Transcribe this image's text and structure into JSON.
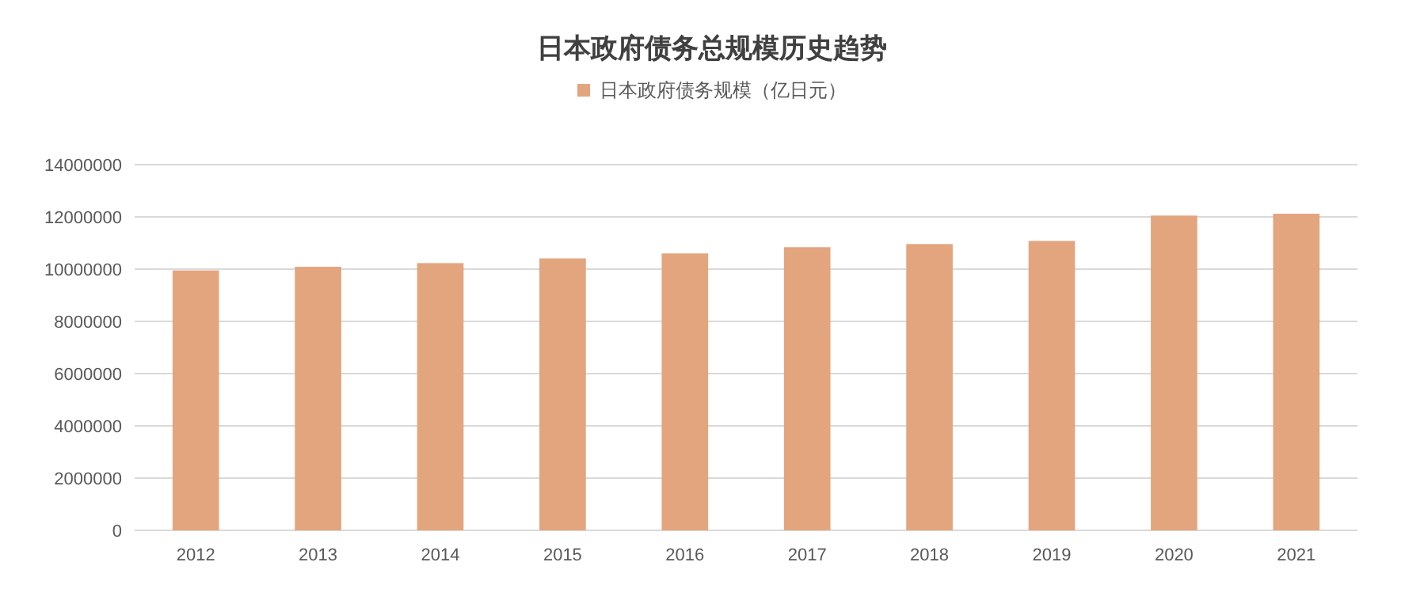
{
  "chart_data": {
    "type": "bar",
    "title": "日本政府债务总规模历史趋势",
    "categories": [
      "2012",
      "2013",
      "2014",
      "2015",
      "2016",
      "2017",
      "2018",
      "2019",
      "2020",
      "2021"
    ],
    "series": [
      {
        "name": "日本政府债务规模（亿日元）",
        "color": "#e3a57e",
        "values": [
          9950000,
          10090000,
          10230000,
          10410000,
          10600000,
          10840000,
          10960000,
          11080000,
          12050000,
          12120000
        ]
      }
    ],
    "ylim": [
      0,
      14000000
    ],
    "yticks": [
      0,
      2000000,
      4000000,
      6000000,
      8000000,
      10000000,
      12000000,
      14000000
    ],
    "grid": "y",
    "legend": "top"
  }
}
